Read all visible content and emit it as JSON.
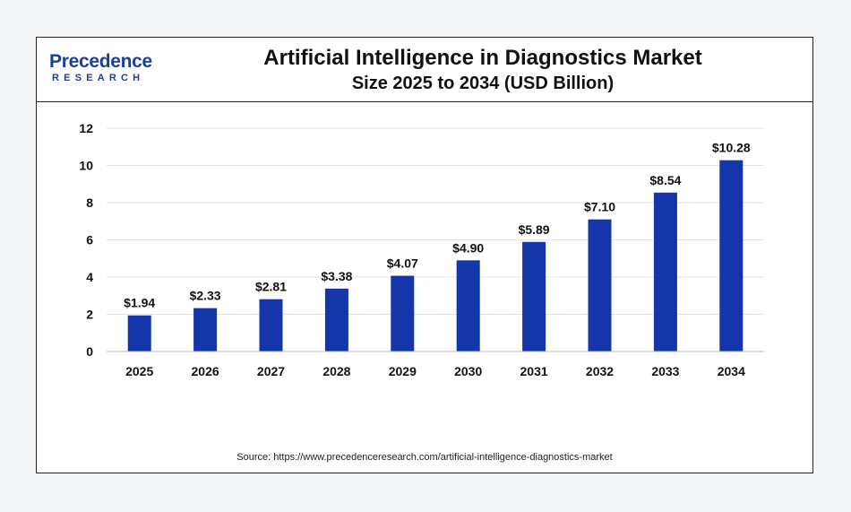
{
  "logo": {
    "word": "Precedence",
    "sub": "RESEARCH"
  },
  "header": {
    "title_line1": "Artificial Intelligence in Diagnostics Market",
    "title_line2": "Size 2025 to 2034 (USD Billion)"
  },
  "chart_data": {
    "type": "bar",
    "title": "Artificial Intelligence in Diagnostics Market Size 2025 to 2034 (USD Billion)",
    "categories": [
      "2025",
      "2026",
      "2027",
      "2028",
      "2029",
      "2030",
      "2031",
      "2032",
      "2033",
      "2034"
    ],
    "values": [
      1.94,
      2.33,
      2.81,
      3.38,
      4.07,
      4.9,
      5.89,
      7.1,
      8.54,
      10.28
    ],
    "labels": [
      "$1.94",
      "$2.33",
      "$2.81",
      "$3.38",
      "$4.07",
      "$4.90",
      "$5.89",
      "$7.10",
      "$8.54",
      "$10.28"
    ],
    "yticks": [
      0,
      2,
      4,
      6,
      8,
      10,
      12
    ],
    "ylim": [
      0,
      12
    ],
    "xlabel": "",
    "ylabel": "",
    "grid": true,
    "bar_color": "#1436a8"
  },
  "source": "Source: https://www.precedenceresearch.com/artificial-intelligence-diagnostics-market"
}
